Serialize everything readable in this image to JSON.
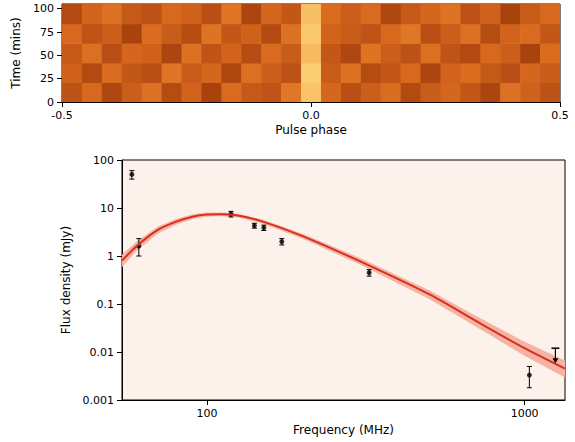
{
  "chart_data": [
    {
      "type": "heatmap",
      "xlabel": "Pulse phase",
      "ylabel": "Time (mins)",
      "xlim": [
        -0.5,
        0.5
      ],
      "xticks": [
        -0.5,
        {
          "value": 0,
          "label": "0.0"
        },
        0.5
      ],
      "ylim": [
        0,
        105
      ],
      "yticks": [
        0,
        25,
        50,
        75,
        100
      ],
      "grid": false,
      "x_bins": [
        -0.5,
        -0.46,
        -0.42,
        -0.38,
        -0.34,
        -0.3,
        -0.26,
        -0.22,
        -0.18,
        -0.14,
        -0.1,
        -0.06,
        -0.02,
        0.02,
        0.06,
        0.1,
        0.14,
        0.18,
        0.22,
        0.26,
        0.3,
        0.34,
        0.38,
        0.42,
        0.46,
        0.5
      ],
      "y_bins": [
        0,
        21,
        42,
        63,
        84,
        105
      ],
      "color_range": [
        0.3,
        1.0
      ],
      "cells": [
        [
          0.42,
          0.51,
          0.38,
          0.47,
          0.55,
          0.4,
          0.49,
          0.36,
          0.52,
          0.45,
          0.43,
          0.58,
          0.88,
          0.5,
          0.41,
          0.47,
          0.53,
          0.39,
          0.46,
          0.5,
          0.44,
          0.37,
          0.55,
          0.48,
          0.42
        ],
        [
          0.48,
          0.39,
          0.53,
          0.44,
          0.41,
          0.57,
          0.46,
          0.5,
          0.38,
          0.54,
          0.47,
          0.42,
          0.92,
          0.46,
          0.55,
          0.4,
          0.44,
          0.51,
          0.37,
          0.49,
          0.53,
          0.45,
          0.41,
          0.5,
          0.46
        ],
        [
          0.45,
          0.54,
          0.41,
          0.5,
          0.48,
          0.37,
          0.55,
          0.43,
          0.49,
          0.4,
          0.52,
          0.46,
          0.85,
          0.44,
          0.38,
          0.56,
          0.47,
          0.42,
          0.54,
          0.43,
          0.39,
          0.51,
          0.47,
          0.36,
          0.53
        ],
        [
          0.51,
          0.43,
          0.47,
          0.36,
          0.53,
          0.46,
          0.4,
          0.56,
          0.44,
          0.48,
          0.39,
          0.55,
          0.9,
          0.49,
          0.46,
          0.43,
          0.51,
          0.58,
          0.41,
          0.47,
          0.55,
          0.4,
          0.49,
          0.52,
          0.44
        ],
        [
          0.39,
          0.49,
          0.55,
          0.45,
          0.42,
          0.51,
          0.48,
          0.41,
          0.57,
          0.37,
          0.5,
          0.44,
          0.87,
          0.53,
          0.47,
          0.52,
          0.38,
          0.45,
          0.5,
          0.56,
          0.42,
          0.48,
          0.36,
          0.46,
          0.51
        ]
      ]
    },
    {
      "type": "scatter",
      "xlabel": "Frequency (MHz)",
      "ylabel": "Flux density (mJy)",
      "log": true,
      "grid": false,
      "xlim": [
        54,
        1340
      ],
      "xticks": [
        100,
        1000
      ],
      "ylim": [
        0.001,
        100
      ],
      "yticks": [
        0.001,
        0.01,
        0.1,
        1,
        10,
        100
      ],
      "series": [
        {
          "type": "line",
          "color": "#d7301f",
          "x": [
            54,
            60,
            70,
            80,
            90,
            100,
            110,
            125,
            150,
            200,
            300,
            500,
            700,
            1000,
            1340
          ],
          "values": [
            0.8,
            1.6,
            3.5,
            5.2,
            6.6,
            7.3,
            7.4,
            7.0,
            5.2,
            2.6,
            0.8,
            0.16,
            0.045,
            0.012,
            0.0045
          ],
          "band_low": [
            0.6,
            1.3,
            3.0,
            4.6,
            6.0,
            6.7,
            6.9,
            6.5,
            4.8,
            2.35,
            0.7,
            0.13,
            0.035,
            0.0085,
            0.003
          ],
          "band_high": [
            1.05,
            1.95,
            4.0,
            5.8,
            7.2,
            7.9,
            7.9,
            7.5,
            5.6,
            2.85,
            0.92,
            0.19,
            0.056,
            0.016,
            0.0065
          ]
        },
        {
          "type": "scatter",
          "color": "#000000",
          "marker": "circle",
          "x": [
            58,
            61,
            119,
            141,
            151,
            172,
            324,
            1035
          ],
          "values": [
            50,
            1.6,
            7.5,
            4.3,
            3.9,
            2.0,
            0.45,
            0.0033
          ],
          "y_low": [
            40,
            1.0,
            6.5,
            3.8,
            3.4,
            1.7,
            0.38,
            0.0018
          ],
          "y_high": [
            60,
            2.3,
            8.5,
            4.8,
            4.4,
            2.3,
            0.52,
            0.005
          ]
        },
        {
          "type": "scatter",
          "color": "#000000",
          "marker": "upper_limit",
          "x": [
            1250
          ],
          "values": [
            0.012
          ]
        }
      ]
    }
  ]
}
